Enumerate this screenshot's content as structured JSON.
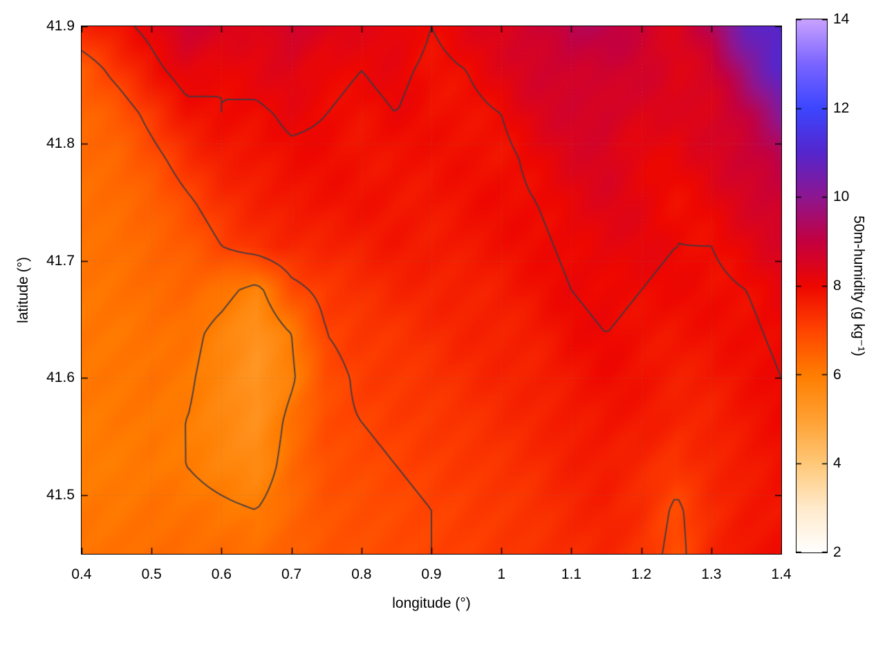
{
  "chart_data": {
    "type": "heatmap",
    "title": "",
    "xlabel": "longitude (°)",
    "ylabel": "latitude (°)",
    "colorbar_label": "50m-humidity (g kg⁻¹)",
    "xlim": [
      0.4,
      1.4
    ],
    "ylim": [
      41.45,
      41.9
    ],
    "clim": [
      2,
      14
    ],
    "x_tick_values": [
      0.4,
      0.5,
      0.6,
      0.7,
      0.8,
      0.9,
      1.0,
      1.1,
      1.2,
      1.3,
      1.4
    ],
    "x_tick_labels": [
      "0.4",
      "0.5",
      "0.6",
      "0.7",
      "0.8",
      "0.9",
      "1",
      "1.1",
      "1.2",
      "1.3",
      "1.4"
    ],
    "y_tick_values": [
      41.5,
      41.6,
      41.7,
      41.8,
      41.9
    ],
    "y_tick_labels": [
      "41.5",
      "41.6",
      "41.7",
      "41.8",
      "41.9"
    ],
    "cb_tick_values": [
      2,
      4,
      6,
      8,
      10,
      12,
      14
    ],
    "cb_tick_labels": [
      "2",
      "4",
      "6",
      "8",
      "10",
      "12",
      "14"
    ],
    "grid": true,
    "legend_position": "colorbar-right",
    "contour_levels": [
      6,
      7,
      8
    ],
    "contour_color": "#3a3a45",
    "palette": [
      {
        "v": 2,
        "c": "#ffffff"
      },
      {
        "v": 3,
        "c": "#ffeacb"
      },
      {
        "v": 4,
        "c": "#ffc878"
      },
      {
        "v": 5,
        "c": "#ffa032"
      },
      {
        "v": 6,
        "c": "#ff7d00"
      },
      {
        "v": 7,
        "c": "#ff4400"
      },
      {
        "v": 8,
        "c": "#ee0700"
      },
      {
        "v": 9,
        "c": "#c4003f"
      },
      {
        "v": 10,
        "c": "#8e1690"
      },
      {
        "v": 11,
        "c": "#5526cd"
      },
      {
        "v": 12,
        "c": "#3c46ff"
      },
      {
        "v": 13,
        "c": "#7a64ff"
      },
      {
        "v": 14,
        "c": "#c9a2ff"
      }
    ],
    "lon": [
      0.4,
      0.45,
      0.5,
      0.55,
      0.6,
      0.65,
      0.7,
      0.75,
      0.8,
      0.85,
      0.9,
      0.95,
      1.0,
      1.05,
      1.1,
      1.15,
      1.2,
      1.25,
      1.3,
      1.35,
      1.4
    ],
    "lat": [
      41.9,
      41.8625,
      41.825,
      41.7875,
      41.75,
      41.7125,
      41.675,
      41.6375,
      41.6,
      41.5625,
      41.525,
      41.4875,
      41.45
    ],
    "values": [
      [
        7.5,
        7.8,
        8.2,
        8.8,
        8.5,
        8.3,
        8.8,
        8.4,
        8.2,
        8.3,
        8.0,
        8.2,
        8.4,
        8.9,
        9.2,
        9.0,
        8.8,
        8.6,
        9.2,
        10.5,
        11.2
      ],
      [
        6.6,
        7.2,
        7.8,
        8.3,
        8.0,
        8.2,
        8.4,
        8.1,
        8.0,
        8.1,
        7.9,
        8.0,
        8.2,
        8.6,
        8.9,
        8.7,
        8.5,
        8.4,
        8.8,
        9.8,
        10.8
      ],
      [
        6.4,
        6.6,
        7.2,
        7.8,
        8.0,
        7.9,
        8.1,
        8.0,
        7.9,
        8.0,
        7.8,
        7.9,
        8.0,
        8.3,
        8.6,
        8.8,
        8.4,
        8.2,
        8.5,
        9.2,
        10.0
      ],
      [
        6.3,
        6.4,
        6.8,
        7.3,
        7.7,
        7.8,
        7.9,
        7.9,
        7.8,
        7.9,
        7.8,
        7.8,
        7.9,
        8.1,
        8.3,
        8.5,
        8.3,
        8.1,
        8.3,
        8.8,
        9.4
      ],
      [
        6.2,
        6.3,
        6.5,
        6.9,
        7.3,
        7.6,
        7.8,
        7.8,
        7.8,
        7.8,
        7.8,
        7.8,
        7.9,
        8.0,
        8.2,
        8.3,
        8.2,
        8.0,
        8.1,
        8.4,
        8.8
      ],
      [
        6.2,
        6.2,
        6.4,
        6.6,
        7.0,
        7.3,
        7.5,
        7.6,
        7.6,
        7.7,
        7.7,
        7.8,
        7.8,
        7.9,
        8.1,
        8.2,
        8.1,
        8.0,
        8.0,
        8.2,
        8.4
      ],
      [
        6.1,
        6.2,
        6.3,
        6.4,
        6.2,
        5.8,
        6.8,
        7.2,
        7.4,
        7.5,
        7.5,
        7.6,
        7.7,
        7.8,
        8.0,
        8.1,
        8.0,
        7.9,
        7.9,
        8.0,
        8.2
      ],
      [
        6.1,
        6.1,
        6.2,
        6.2,
        5.8,
        5.4,
        6.0,
        7.0,
        7.2,
        7.3,
        7.4,
        7.5,
        7.6,
        7.7,
        7.9,
        8.0,
        7.9,
        7.8,
        7.8,
        7.9,
        8.1
      ],
      [
        6.1,
        6.1,
        6.2,
        6.1,
        5.7,
        5.3,
        5.9,
        6.8,
        7.1,
        7.2,
        7.3,
        7.4,
        7.5,
        7.6,
        7.8,
        7.9,
        7.8,
        7.7,
        7.7,
        7.8,
        8.0
      ],
      [
        6.0,
        6.1,
        6.1,
        6.0,
        5.7,
        5.4,
        6.2,
        6.9,
        7.0,
        7.1,
        7.2,
        7.3,
        7.4,
        7.5,
        7.7,
        7.8,
        7.7,
        7.5,
        7.6,
        7.8,
        7.9
      ],
      [
        6.0,
        6.0,
        6.1,
        6.0,
        5.8,
        5.6,
        6.3,
        6.8,
        6.9,
        7.0,
        7.1,
        7.2,
        7.3,
        7.4,
        7.6,
        7.7,
        7.5,
        7.2,
        7.5,
        7.7,
        7.9
      ],
      [
        6.1,
        6.1,
        6.2,
        6.2,
        6.1,
        6.0,
        6.4,
        6.7,
        6.8,
        6.9,
        7.0,
        7.1,
        7.2,
        7.3,
        7.5,
        7.6,
        7.4,
        6.9,
        7.4,
        7.7,
        7.8
      ],
      [
        6.2,
        6.2,
        6.3,
        6.3,
        6.3,
        6.3,
        6.5,
        6.7,
        6.8,
        6.9,
        7.0,
        7.1,
        7.2,
        7.3,
        7.4,
        7.5,
        7.3,
        6.8,
        7.5,
        7.8,
        7.9
      ]
    ]
  }
}
